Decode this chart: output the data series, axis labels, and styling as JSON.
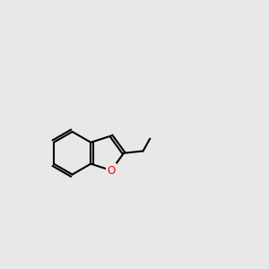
{
  "bg_color": "#e8e8e8",
  "black": "#000000",
  "red": "#ff0000",
  "blue": "#0000ff",
  "dark_gray": "#404040",
  "lw_single": 1.5,
  "lw_double": 1.5,
  "font_size_atom": 8.5,
  "font_size_small": 7.0,
  "figsize": [
    3.0,
    3.0
  ],
  "dpi": 100
}
